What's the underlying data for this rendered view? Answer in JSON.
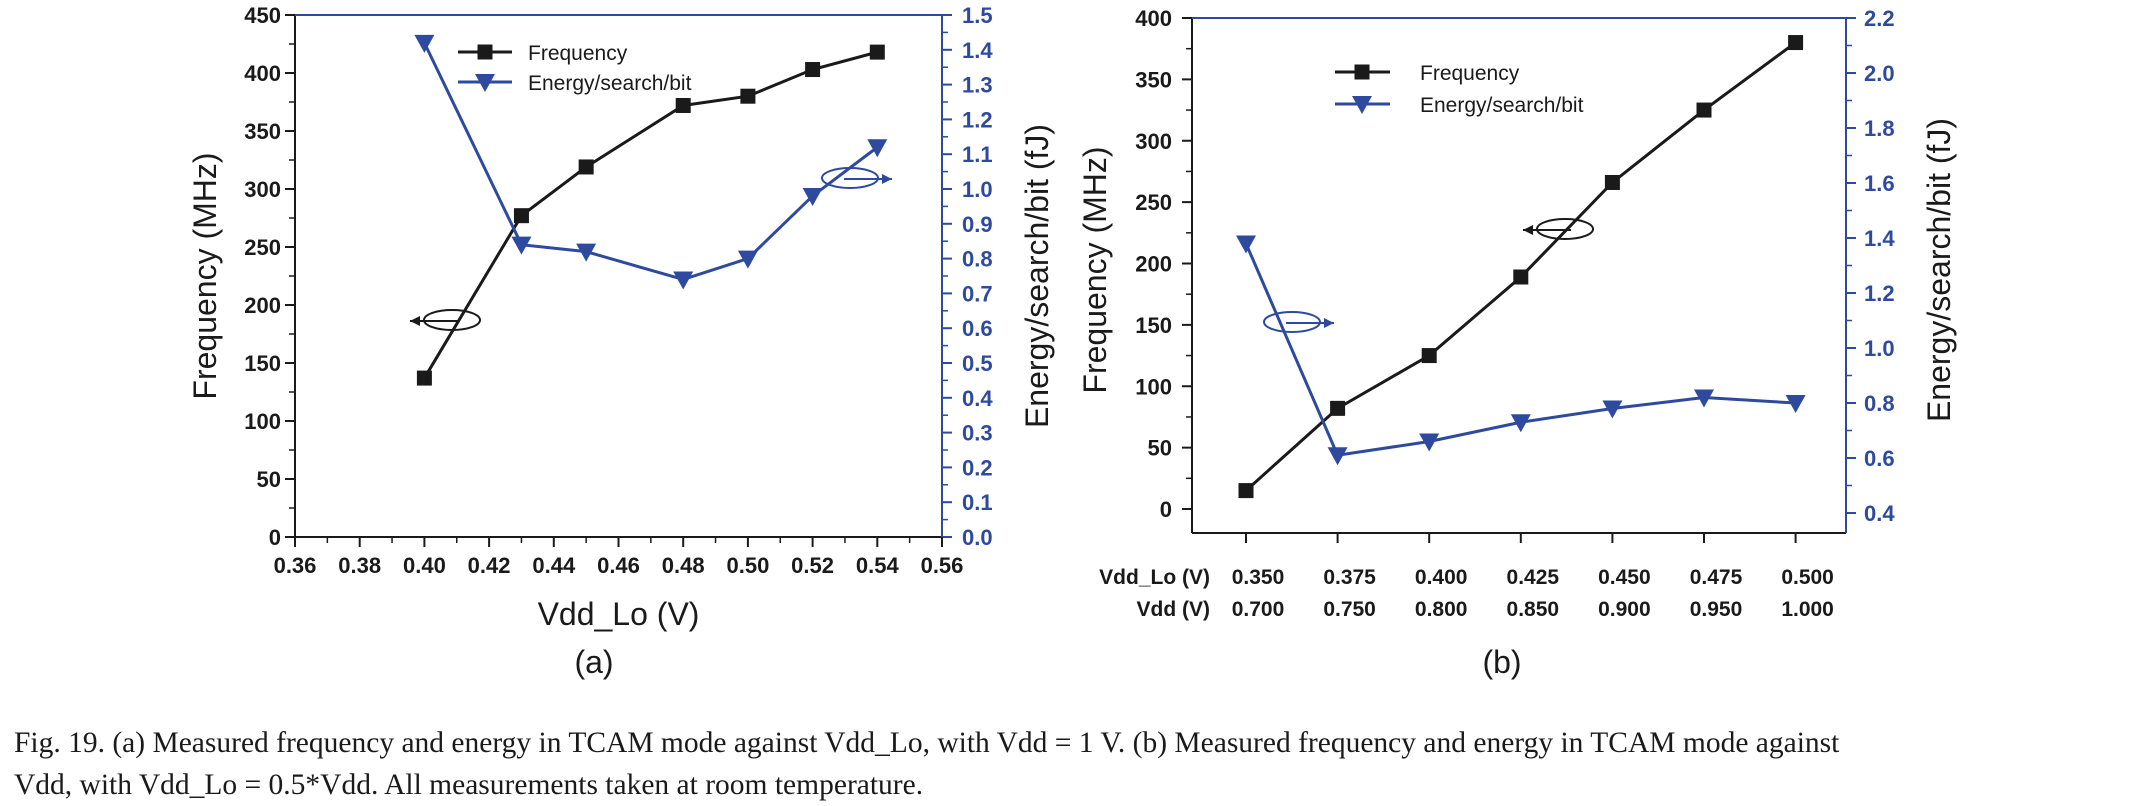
{
  "chart_data": [
    {
      "type": "line",
      "panel_label": "(a)",
      "xlabel": "Vdd_Lo (V)",
      "ylabel": "Frequency (MHz)",
      "y2label": "Energy/search/bit (fJ)",
      "xlim": [
        0.36,
        0.56
      ],
      "ylim": [
        0,
        450
      ],
      "y2lim": [
        0.0,
        1.5
      ],
      "x_ticks": [
        "0.36",
        "0.38",
        "0.40",
        "0.42",
        "0.44",
        "0.46",
        "0.48",
        "0.50",
        "0.52",
        "0.54",
        "0.56"
      ],
      "y_ticks": [
        "0",
        "50",
        "100",
        "150",
        "200",
        "250",
        "300",
        "350",
        "400",
        "450"
      ],
      "y2_ticks": [
        "0.0",
        "0.1",
        "0.2",
        "0.3",
        "0.4",
        "0.5",
        "0.6",
        "0.7",
        "0.8",
        "0.9",
        "1.0",
        "1.1",
        "1.2",
        "1.3",
        "1.4",
        "1.5"
      ],
      "legend_position": "top-center",
      "grid": false,
      "series": [
        {
          "name": "Frequency",
          "axis": "left",
          "marker": "square",
          "color": "#1a1a1a",
          "x": [
            0.4,
            0.43,
            0.45,
            0.48,
            0.5,
            0.52,
            0.54
          ],
          "values": [
            137,
            277,
            319,
            372,
            380,
            403,
            418
          ]
        },
        {
          "name": "Energy/search/bit",
          "axis": "right",
          "marker": "triangle-down",
          "color": "#2e4a9e",
          "x": [
            0.4,
            0.43,
            0.45,
            0.48,
            0.5,
            0.52,
            0.54
          ],
          "values": [
            1.42,
            0.84,
            0.82,
            0.74,
            0.8,
            0.98,
            1.12
          ]
        }
      ]
    },
    {
      "type": "line",
      "panel_label": "(b)",
      "xlabel_rows": [
        "Vdd_Lo (V)",
        "Vdd (V)"
      ],
      "categories": [
        "0.350",
        "0.375",
        "0.400",
        "0.425",
        "0.450",
        "0.475",
        "0.500"
      ],
      "categories_row2": [
        "0.700",
        "0.750",
        "0.800",
        "0.850",
        "0.900",
        "0.950",
        "1.000"
      ],
      "ylabel": "Frequency (MHz)",
      "y2label": "Energy/search/bit (fJ)",
      "ylim": [
        0,
        400
      ],
      "y2lim": [
        0.4,
        2.2
      ],
      "y_ticks": [
        "0",
        "50",
        "100",
        "150",
        "200",
        "250",
        "300",
        "350",
        "400"
      ],
      "y2_ticks": [
        "0.4",
        "0.6",
        "0.8",
        "1.0",
        "1.2",
        "1.4",
        "1.6",
        "1.8",
        "2.0",
        "2.2"
      ],
      "legend_position": "top-left",
      "grid": false,
      "series": [
        {
          "name": "Frequency",
          "axis": "left",
          "marker": "square",
          "color": "#1a1a1a",
          "values": [
            15,
            82,
            125,
            189,
            266,
            325,
            380
          ]
        },
        {
          "name": "Energy/search/bit",
          "axis": "right",
          "marker": "triangle-down",
          "color": "#2e4a9e",
          "values": [
            1.38,
            0.61,
            0.66,
            0.73,
            0.78,
            0.82,
            0.8
          ]
        }
      ]
    }
  ],
  "caption": {
    "line1": "Fig. 19.  (a) Measured frequency and energy in TCAM mode against Vdd_Lo, with Vdd = 1 V. (b) Measured frequency and energy in TCAM mode against",
    "line2": "Vdd, with Vdd_Lo = 0.5*Vdd. All measurements taken at room temperature."
  }
}
